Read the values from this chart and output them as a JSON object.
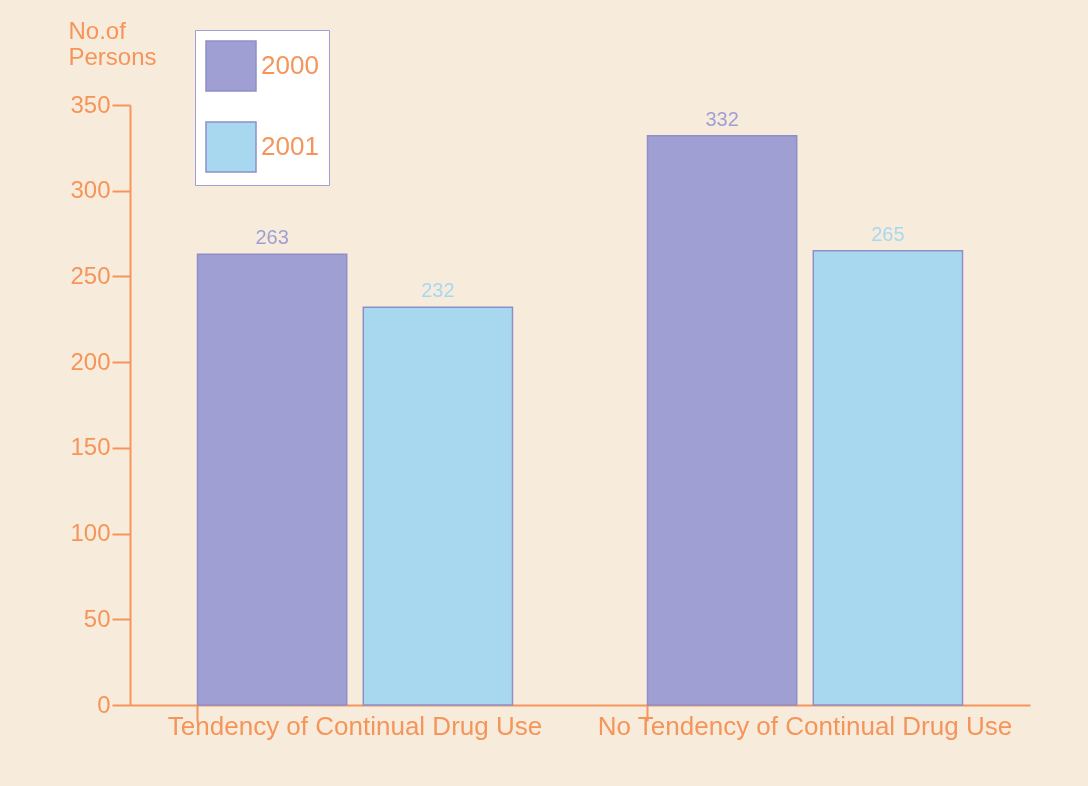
{
  "chart_data": {
    "type": "bar",
    "ylabel": "No.of Persons",
    "categories": [
      "Tendency of Continual Drug Use",
      "No Tendency of Continual Drug Use"
    ],
    "series": [
      {
        "name": "2000",
        "color": "#a09fd4",
        "values": [
          263,
          332
        ]
      },
      {
        "name": "2001",
        "color": "#a8d8f0",
        "values": [
          232,
          265
        ]
      }
    ],
    "ylim": [
      0,
      350
    ],
    "yticks": [
      0,
      50,
      100,
      150,
      200,
      250,
      300,
      350
    ],
    "grid": false,
    "legend": "top left",
    "data_labels": true
  }
}
